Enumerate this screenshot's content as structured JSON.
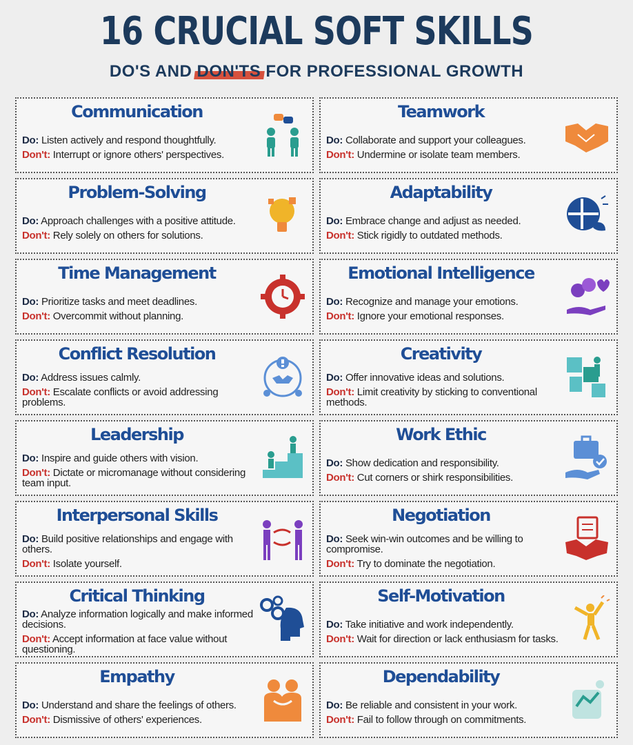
{
  "header": {
    "title": "16 CRUCIAL SOFT SKILLS",
    "subtitle_pre": "DO'S AND ",
    "subtitle_highlight": "DON'TS",
    "subtitle_post": " FOR PROFESSIONAL GROWTH",
    "highlight_color": "#d6513d"
  },
  "labels": {
    "do": "Do:",
    "dont": "Don't:"
  },
  "skills": [
    {
      "title": "Communication",
      "do": "Listen actively and respond thoughtfully.",
      "dont": "Interrupt or ignore others' perspectives.",
      "icon": "conversation-icon"
    },
    {
      "title": "Teamwork",
      "do": "Collaborate and support your colleagues.",
      "dont": "Undermine or isolate team members.",
      "icon": "handshake-icon"
    },
    {
      "title": "Problem-Solving",
      "do": "Approach challenges with a positive attitude.",
      "dont": "Rely solely on others for solutions.",
      "icon": "lightbulb-puzzle-icon"
    },
    {
      "title": "Adaptability",
      "do": "Embrace change and adjust as needed.",
      "dont": "Stick rigidly to outdated methods.",
      "icon": "puzzle-head-icon"
    },
    {
      "title": "Time Management",
      "do": "Prioritize tasks and meet deadlines.",
      "dont": "Overcommit without planning.",
      "icon": "gear-clock-icon"
    },
    {
      "title": "Emotional Intelligence",
      "do": "Recognize and manage your emotions.",
      "dont": "Ignore your emotional responses.",
      "icon": "emotions-hand-icon"
    },
    {
      "title": "Conflict Resolution",
      "do": "Address issues calmly.",
      "dont": "Escalate conflicts or avoid addressing problems.",
      "icon": "conflict-handshake-icon"
    },
    {
      "title": "Creativity",
      "do": "Offer innovative ideas and solutions.",
      "dont": "Limit creativity by sticking to conventional methods.",
      "icon": "puzzle-people-icon"
    },
    {
      "title": "Leadership",
      "do": "Inspire and guide others with vision.",
      "dont": "Dictate or micromanage without considering team input.",
      "icon": "leader-stairs-icon"
    },
    {
      "title": "Work Ethic",
      "do": "Show dedication and responsibility.",
      "dont": "Cut corners or shirk responsibilities.",
      "icon": "briefcase-hand-icon"
    },
    {
      "title": "Interpersonal Skills",
      "do": "Build positive relationships and engage with others.",
      "dont": "Isolate yourself.",
      "icon": "exchange-people-icon"
    },
    {
      "title": "Negotiation",
      "do": "Seek win-win outcomes and be willing to compromise.",
      "dont": "Try to dominate the negotiation.",
      "icon": "contract-handshake-icon"
    },
    {
      "title": "Critical Thinking",
      "do": "Analyze information logically and make informed decisions.",
      "dont": "Accept information at face value without questioning.",
      "icon": "head-gears-icon"
    },
    {
      "title": "Self-Motivation",
      "do": "Take initiative and work independently.",
      "dont": "Wait for direction or lack enthusiasm for tasks.",
      "icon": "celebrating-person-icon"
    },
    {
      "title": "Empathy",
      "do": "Understand and share the feelings of others.",
      "dont": "Dismissive of others' experiences.",
      "icon": "hugging-people-icon"
    },
    {
      "title": "Dependability",
      "do": "Be reliable and consistent in your work.",
      "dont": "Fail to follow through on commitments.",
      "icon": "reliability-icon"
    }
  ],
  "colors": {
    "title": "#1c3a5c",
    "skill_title": "#1f4e96",
    "dont": "#c8312c",
    "teal": "#2a9d8f",
    "orange": "#ef8a3c",
    "blue": "#1f4e96",
    "purple": "#7b3fbf",
    "red": "#c8312c",
    "yellow": "#f0b429"
  }
}
